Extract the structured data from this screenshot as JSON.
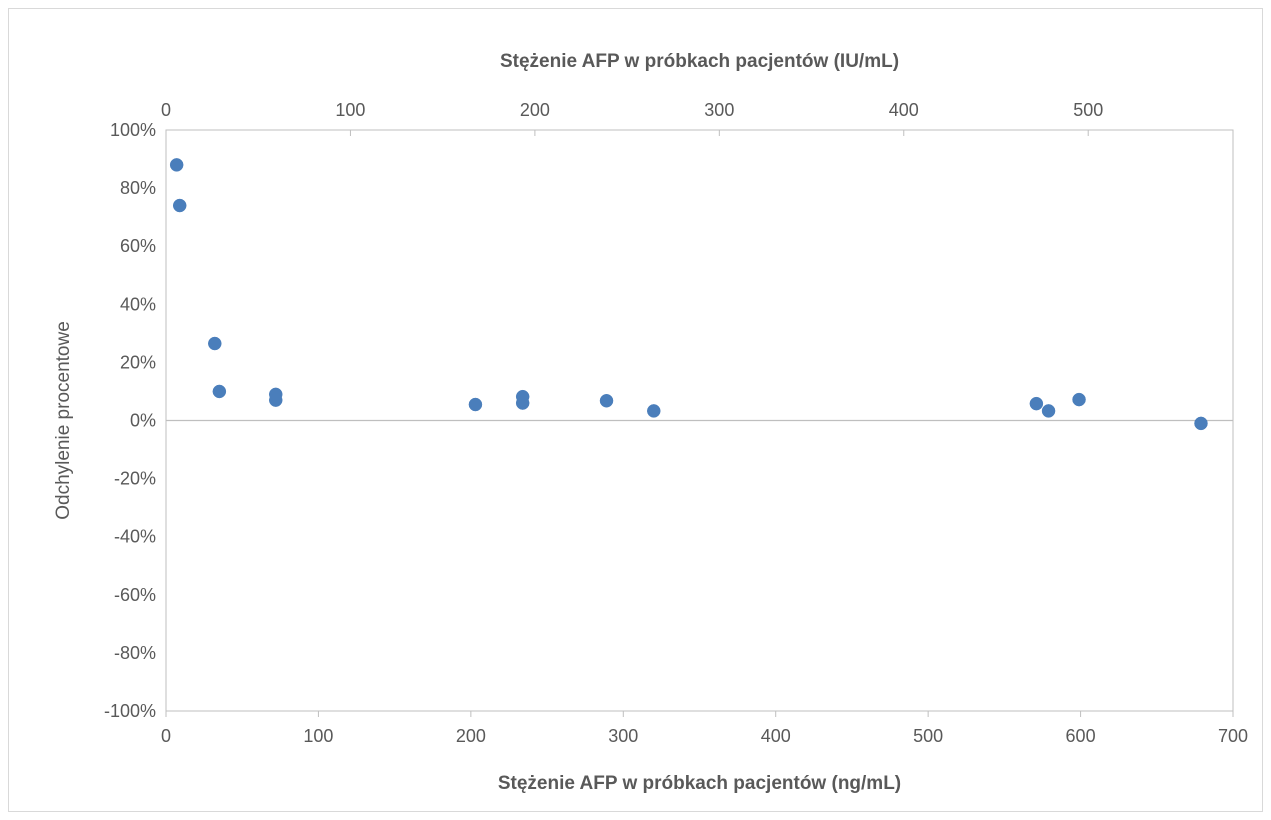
{
  "chart_data": {
    "type": "scatter",
    "title": "",
    "xlabel": "Stężenie AFP w próbkach pacjentów (ng/mL)",
    "x2label": "Stężenie AFP w próbkach pacjentów (IU/mL)",
    "ylabel": "Odchylenie procentowe",
    "xlim": [
      0,
      700
    ],
    "x2lim": [
      0,
      578.5
    ],
    "ylim": [
      -1.0,
      1.0
    ],
    "x_ticks": [
      "0",
      "100",
      "200",
      "300",
      "400",
      "500",
      "600",
      "700"
    ],
    "x2_ticks": [
      "0",
      "100",
      "200",
      "300",
      "400",
      "500"
    ],
    "y_ticks": [
      "100%",
      "80%",
      "60%",
      "40%",
      "20%",
      "0%",
      "-20%",
      "-40%",
      "-60%",
      "-80%",
      "-100%"
    ],
    "grid": false,
    "marker_color": "#4a7ebb",
    "series": [
      {
        "points": [
          {
            "x": 7,
            "y": 0.88
          },
          {
            "x": 9,
            "y": 0.74
          },
          {
            "x": 32,
            "y": 0.265
          },
          {
            "x": 35,
            "y": 0.1
          },
          {
            "x": 72,
            "y": 0.09
          },
          {
            "x": 72,
            "y": 0.07
          },
          {
            "x": 203,
            "y": 0.055
          },
          {
            "x": 234,
            "y": 0.082
          },
          {
            "x": 234,
            "y": 0.06
          },
          {
            "x": 289,
            "y": 0.068
          },
          {
            "x": 320,
            "y": 0.033
          },
          {
            "x": 571,
            "y": 0.058
          },
          {
            "x": 579,
            "y": 0.033
          },
          {
            "x": 599,
            "y": 0.072
          },
          {
            "x": 679,
            "y": -0.01
          }
        ]
      }
    ]
  }
}
